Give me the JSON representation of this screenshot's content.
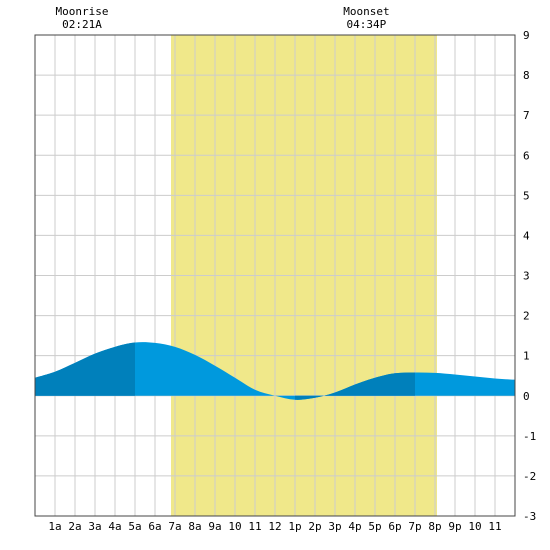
{
  "chart_data": {
    "type": "area",
    "title": "",
    "xlabel": "",
    "ylabel": "",
    "x_ticks": [
      "1a",
      "2a",
      "3a",
      "4a",
      "5a",
      "6a",
      "7a",
      "8a",
      "9a",
      "10",
      "11",
      "12",
      "1p",
      "2p",
      "3p",
      "4p",
      "5p",
      "6p",
      "7p",
      "8p",
      "9p",
      "10",
      "11"
    ],
    "y_ticks": [
      "9",
      "8",
      "7",
      "6",
      "5",
      "4",
      "3",
      "2",
      "1",
      "0",
      "-1",
      "-2",
      "-3"
    ],
    "xlim": [
      0,
      24
    ],
    "ylim": [
      -3,
      9
    ],
    "grid": true,
    "daylight": {
      "start_hour": 6.8,
      "end_hour": 20.1
    },
    "moon": {
      "rise_label": "Moonrise",
      "rise_time": "02:21A",
      "rise_hour": 2.35,
      "set_label": "Moonset",
      "set_time": "04:34P",
      "set_hour": 16.57
    },
    "series": [
      {
        "x": [
          0,
          1,
          2,
          3,
          4,
          5,
          6,
          7,
          8,
          9,
          10,
          11,
          12,
          13,
          14,
          15,
          16,
          17,
          18,
          19,
          20,
          21,
          22,
          23,
          24
        ],
        "values": [
          0.45,
          0.6,
          0.82,
          1.05,
          1.22,
          1.33,
          1.32,
          1.22,
          1.02,
          0.75,
          0.45,
          0.15,
          0.0,
          -0.1,
          -0.05,
          0.08,
          0.28,
          0.45,
          0.56,
          0.58,
          0.57,
          0.53,
          0.48,
          0.43,
          0.4
        ]
      }
    ],
    "colors": {
      "fill_dark": "#0080bb",
      "fill_light": "#0099dd",
      "daylight": "#f0e88a",
      "grid": "#cccccc",
      "frame": "#444444"
    }
  }
}
